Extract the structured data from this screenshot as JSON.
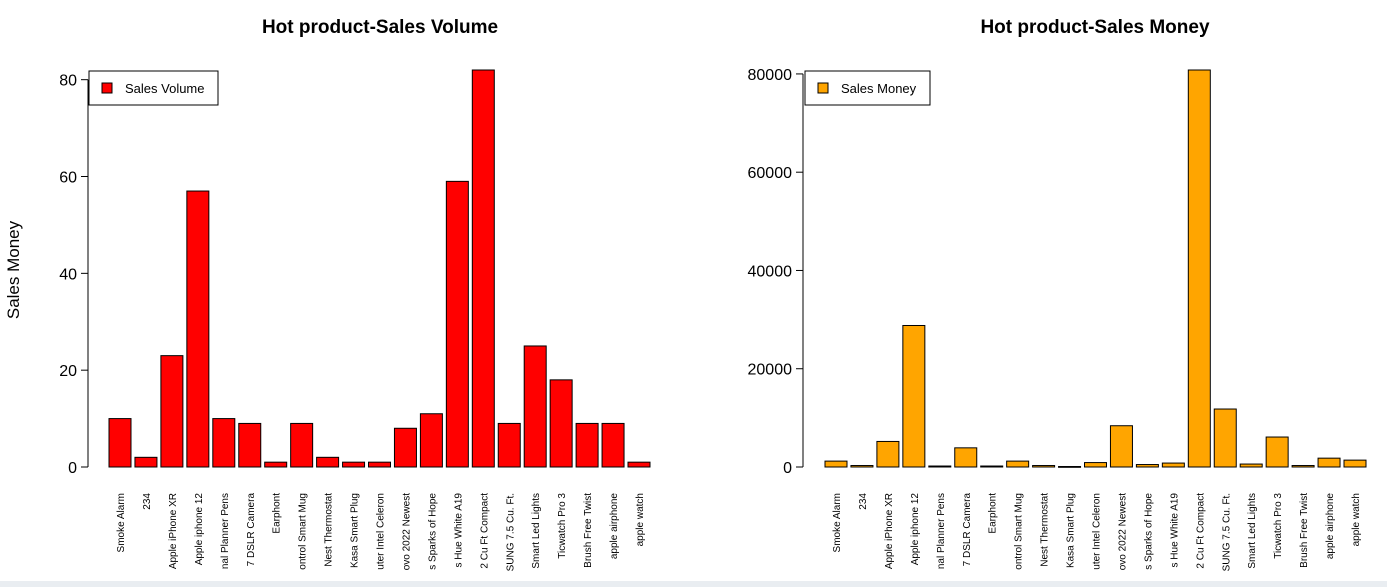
{
  "chart_data": [
    {
      "type": "bar",
      "title": "Hot product-Sales Volume",
      "ylabel": "Sales Money",
      "xlabel": "",
      "categories": [
        "Smoke Alarm",
        "234",
        "Apple iPhone XR",
        "Apple iphone 12",
        "nal Planner Pens",
        "7 DSLR Camera",
        "Earphont",
        "ontrol Smart Mug",
        "Nest Thermostat",
        "Kasa Smart Plug",
        "uter Intel Celeron",
        "ovo 2022 Newest",
        "s Sparks of Hope",
        "s Hue White A19",
        "2 Cu Ft Compact",
        "SUNG 7.5 Cu. Ft.",
        "Smart Led Lights",
        "Ticwatch Pro 3",
        "Brush Free Twist",
        "apple airphone",
        "apple watch"
      ],
      "series": [
        {
          "name": "Sales Volume",
          "color": "#ff0000",
          "values": [
            10,
            2,
            23,
            57,
            10,
            9,
            1,
            9,
            2,
            1,
            1,
            8,
            11,
            59,
            82,
            9,
            25,
            18,
            9,
            9,
            1
          ]
        }
      ],
      "yticks": [
        "0",
        "20",
        "40",
        "60",
        "80"
      ],
      "ylim": [
        0,
        82
      ],
      "grid": false,
      "legend": "top-left"
    },
    {
      "type": "bar",
      "title": "Hot product-Sales Money",
      "ylabel": "",
      "xlabel": "",
      "categories": [
        "Smoke Alarm",
        "234",
        "Apple iPhone XR",
        "Apple iphone 12",
        "nal Planner Pens",
        "7 DSLR Camera",
        "Earphont",
        "ontrol Smart Mug",
        "Nest Thermostat",
        "Kasa Smart Plug",
        "uter Intel Celeron",
        "ovo 2022 Newest",
        "s Sparks of Hope",
        "s Hue White A19",
        "2 Cu Ft Compact",
        "SUNG 7.5 Cu. Ft.",
        "Smart Led Lights",
        "Ticwatch Pro 3",
        "Brush Free Twist",
        "apple airphone",
        "apple watch"
      ],
      "series": [
        {
          "name": "Sales Money",
          "color": "#ffa500",
          "values": [
            1200,
            300,
            5200,
            28800,
            200,
            3900,
            200,
            1200,
            300,
            100,
            900,
            8400,
            500,
            800,
            80800,
            11800,
            600,
            6100,
            300,
            1800,
            1400
          ]
        }
      ],
      "yticks": [
        "0",
        "20000",
        "40000",
        "60000",
        "80000"
      ],
      "ylim": [
        0,
        80800
      ],
      "grid": false,
      "legend": "top-left"
    }
  ]
}
